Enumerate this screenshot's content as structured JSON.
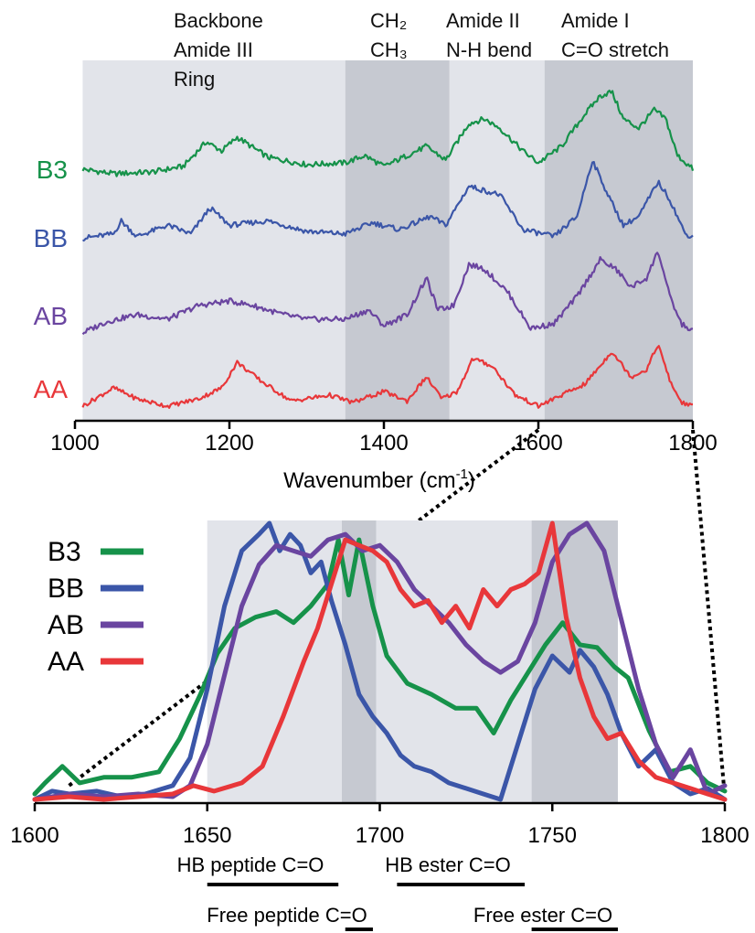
{
  "chart_data": [
    {
      "type": "line",
      "xlabel": "Wavenumber (cm",
      "xlabel_sup": "-1",
      "xlabel_close": ")",
      "xlim": [
        1000,
        1800
      ],
      "xticks": [
        1000,
        1200,
        1400,
        1600,
        1800
      ],
      "stacked_offset": true,
      "region_labels": [
        {
          "lines": [
            "Backbone",
            "Amide III",
            "Ring"
          ]
        },
        {
          "lines": [
            "CH₂",
            "CH₃"
          ]
        },
        {
          "lines": [
            "Amide II",
            "N-H bend"
          ]
        },
        {
          "lines": [
            "Amide I",
            "C=O stretch"
          ]
        }
      ],
      "regions": [
        {
          "x0": 1010,
          "x1": 1350,
          "tone": "light"
        },
        {
          "x0": 1350,
          "x1": 1485,
          "tone": "dark"
        },
        {
          "x0": 1485,
          "x1": 1608,
          "tone": "light"
        },
        {
          "x0": 1608,
          "x1": 1800,
          "tone": "dark"
        }
      ],
      "series": [
        {
          "name": "B3",
          "color": "#16924a",
          "x": [
            1010,
            1050,
            1100,
            1140,
            1170,
            1190,
            1210,
            1250,
            1300,
            1350,
            1375,
            1400,
            1430,
            1455,
            1480,
            1510,
            1530,
            1550,
            1580,
            1600,
            1630,
            1660,
            1680,
            1695,
            1710,
            1730,
            1750,
            1765,
            1780,
            1800
          ],
          "y": [
            0.15,
            0.1,
            0.12,
            0.18,
            0.45,
            0.35,
            0.5,
            0.28,
            0.2,
            0.22,
            0.3,
            0.18,
            0.3,
            0.4,
            0.25,
            0.65,
            0.7,
            0.6,
            0.35,
            0.22,
            0.4,
            0.75,
            0.95,
            1.0,
            0.7,
            0.6,
            0.8,
            0.7,
            0.3,
            0.15
          ]
        },
        {
          "name": "BB",
          "color": "#3b56a8",
          "x": [
            1010,
            1050,
            1060,
            1080,
            1120,
            1150,
            1175,
            1200,
            1250,
            1300,
            1350,
            1385,
            1420,
            1460,
            1480,
            1510,
            1530,
            1550,
            1580,
            1620,
            1650,
            1670,
            1690,
            1710,
            1730,
            1755,
            1770,
            1790,
            1800
          ],
          "y": [
            0.1,
            0.15,
            0.3,
            0.12,
            0.25,
            0.15,
            0.45,
            0.25,
            0.3,
            0.18,
            0.15,
            0.28,
            0.2,
            0.35,
            0.25,
            0.7,
            0.65,
            0.6,
            0.2,
            0.12,
            0.35,
            1.0,
            0.6,
            0.25,
            0.35,
            0.75,
            0.55,
            0.15,
            0.12
          ]
        },
        {
          "name": "AB",
          "color": "#6a45a0",
          "x": [
            1010,
            1040,
            1080,
            1120,
            1160,
            1200,
            1230,
            1270,
            1300,
            1350,
            1380,
            1400,
            1430,
            1455,
            1470,
            1490,
            1510,
            1530,
            1560,
            1590,
            1620,
            1650,
            1680,
            1700,
            1720,
            1740,
            1755,
            1770,
            1785,
            1800
          ],
          "y": [
            0.1,
            0.22,
            0.3,
            0.25,
            0.4,
            0.45,
            0.4,
            0.3,
            0.25,
            0.25,
            0.35,
            0.18,
            0.3,
            0.7,
            0.35,
            0.4,
            0.85,
            0.8,
            0.55,
            0.15,
            0.2,
            0.5,
            0.9,
            0.8,
            0.6,
            0.7,
            1.0,
            0.5,
            0.2,
            0.12
          ]
        },
        {
          "name": "AA",
          "color": "#e8373a",
          "x": [
            1010,
            1050,
            1080,
            1120,
            1160,
            1190,
            1210,
            1240,
            1280,
            1330,
            1360,
            1400,
            1430,
            1455,
            1475,
            1495,
            1515,
            1540,
            1570,
            1600,
            1630,
            1660,
            1680,
            1695,
            1720,
            1740,
            1755,
            1770,
            1785,
            1800
          ],
          "y": [
            0.05,
            0.3,
            0.15,
            0.05,
            0.15,
            0.3,
            0.65,
            0.4,
            0.12,
            0.2,
            0.1,
            0.25,
            0.12,
            0.45,
            0.15,
            0.25,
            0.7,
            0.6,
            0.2,
            0.05,
            0.2,
            0.35,
            0.6,
            0.8,
            0.45,
            0.55,
            0.9,
            0.4,
            0.1,
            0.05
          ]
        }
      ]
    },
    {
      "type": "line",
      "xlim": [
        1600,
        1800
      ],
      "xticks": [
        1600,
        1650,
        1700,
        1750,
        1800
      ],
      "ylim": [
        0,
        1
      ],
      "legend_position": "top-left",
      "regions": [
        {
          "x0": 1650,
          "x1": 1689,
          "tone": "light"
        },
        {
          "x0": 1689,
          "x1": 1699,
          "tone": "dark"
        },
        {
          "x0": 1699,
          "x1": 1744,
          "tone": "light"
        },
        {
          "x0": 1744,
          "x1": 1769,
          "tone": "dark"
        }
      ],
      "annotations": [
        {
          "text": "HB peptide C=O",
          "x0": 1650,
          "x1": 1688,
          "row": 1
        },
        {
          "text": "HB ester C=O",
          "x0": 1705,
          "x1": 1742,
          "row": 1
        },
        {
          "text": "Free peptide C=O",
          "x0": 1690,
          "x1": 1698,
          "row": 2
        },
        {
          "text": "Free ester C=O",
          "x0": 1744,
          "x1": 1769,
          "row": 2
        }
      ],
      "series": [
        {
          "name": "B3",
          "color": "#16924a",
          "x": [
            1600,
            1603,
            1608,
            1613,
            1620,
            1628,
            1636,
            1642,
            1648,
            1653,
            1658,
            1664,
            1670,
            1675,
            1680,
            1685,
            1688,
            1691,
            1694,
            1698,
            1702,
            1708,
            1715,
            1722,
            1728,
            1733,
            1738,
            1743,
            1748,
            1753,
            1758,
            1763,
            1768,
            1772,
            1778,
            1784,
            1790,
            1795,
            1800
          ],
          "y": [
            0.02,
            0.06,
            0.12,
            0.06,
            0.08,
            0.08,
            0.1,
            0.22,
            0.38,
            0.53,
            0.62,
            0.66,
            0.68,
            0.64,
            0.7,
            0.78,
            0.94,
            0.74,
            0.94,
            0.7,
            0.52,
            0.42,
            0.38,
            0.33,
            0.33,
            0.24,
            0.36,
            0.46,
            0.56,
            0.64,
            0.56,
            0.55,
            0.48,
            0.44,
            0.25,
            0.1,
            0.12,
            0.06,
            0.03
          ]
        },
        {
          "name": "BB",
          "color": "#3b56a8",
          "x": [
            1600,
            1605,
            1610,
            1618,
            1625,
            1632,
            1640,
            1645,
            1650,
            1655,
            1660,
            1665,
            1668,
            1671,
            1674,
            1677,
            1680,
            1683,
            1686,
            1690,
            1694,
            1698,
            1702,
            1706,
            1710,
            1715,
            1720,
            1725,
            1730,
            1735,
            1740,
            1745,
            1750,
            1755,
            1758,
            1762,
            1766,
            1770,
            1775,
            1780,
            1785,
            1790,
            1795,
            1800
          ],
          "y": [
            0.0,
            0.03,
            0.02,
            0.03,
            0.01,
            0.02,
            0.05,
            0.15,
            0.4,
            0.7,
            0.9,
            0.96,
            1.0,
            0.9,
            0.96,
            0.92,
            0.82,
            0.86,
            0.72,
            0.56,
            0.38,
            0.3,
            0.24,
            0.16,
            0.12,
            0.1,
            0.06,
            0.04,
            0.02,
            0.0,
            0.2,
            0.4,
            0.52,
            0.46,
            0.54,
            0.48,
            0.38,
            0.24,
            0.12,
            0.18,
            0.06,
            0.02,
            0.04,
            0.0
          ]
        },
        {
          "name": "AB",
          "color": "#6a45a0",
          "x": [
            1600,
            1610,
            1620,
            1630,
            1640,
            1645,
            1650,
            1655,
            1660,
            1665,
            1670,
            1675,
            1680,
            1685,
            1690,
            1695,
            1700,
            1705,
            1710,
            1715,
            1720,
            1725,
            1730,
            1735,
            1740,
            1745,
            1750,
            1755,
            1760,
            1765,
            1770,
            1775,
            1780,
            1785,
            1790,
            1795,
            1800
          ],
          "y": [
            0.0,
            0.02,
            0.01,
            0.02,
            0.01,
            0.05,
            0.2,
            0.45,
            0.7,
            0.85,
            0.92,
            0.9,
            0.88,
            0.94,
            0.96,
            0.9,
            0.92,
            0.86,
            0.76,
            0.7,
            0.64,
            0.56,
            0.5,
            0.46,
            0.5,
            0.64,
            0.86,
            0.96,
            1.0,
            0.9,
            0.65,
            0.4,
            0.2,
            0.08,
            0.18,
            0.02,
            0.05
          ]
        },
        {
          "name": "AA",
          "color": "#e8373a",
          "x": [
            1600,
            1610,
            1620,
            1630,
            1640,
            1646,
            1652,
            1660,
            1666,
            1672,
            1678,
            1682,
            1686,
            1690,
            1694,
            1698,
            1702,
            1706,
            1710,
            1714,
            1718,
            1722,
            1726,
            1730,
            1734,
            1738,
            1742,
            1746,
            1750,
            1754,
            1758,
            1762,
            1766,
            1770,
            1775,
            1780,
            1785,
            1790,
            1795,
            1800
          ],
          "y": [
            0.0,
            0.01,
            0.0,
            0.01,
            0.02,
            0.05,
            0.03,
            0.06,
            0.12,
            0.3,
            0.5,
            0.62,
            0.78,
            0.94,
            0.92,
            0.9,
            0.86,
            0.76,
            0.7,
            0.72,
            0.64,
            0.7,
            0.62,
            0.76,
            0.7,
            0.76,
            0.78,
            0.82,
            1.0,
            0.66,
            0.44,
            0.3,
            0.22,
            0.24,
            0.14,
            0.08,
            0.06,
            0.04,
            0.02,
            0.0
          ]
        }
      ]
    }
  ]
}
